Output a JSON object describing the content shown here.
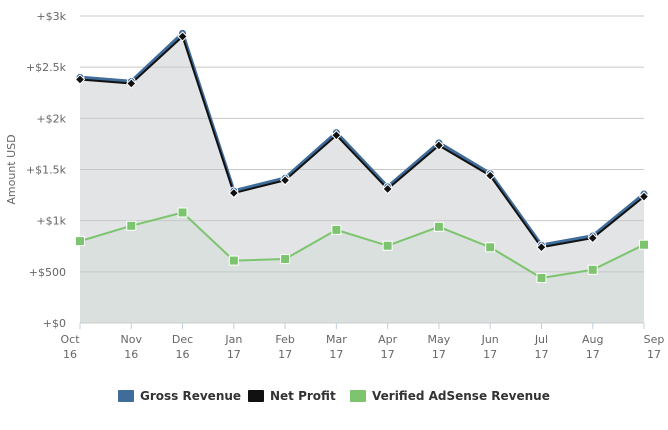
{
  "chart_data": {
    "type": "line",
    "categories": [
      "Oct 16",
      "Nov 16",
      "Dec 16",
      "Jan 17",
      "Feb 17",
      "Mar 17",
      "Apr 17",
      "May 17",
      "Jun 17",
      "Jul 17",
      "Aug 17",
      "Sep 17"
    ],
    "x_tick_lines": [
      [
        "Oct",
        "16"
      ],
      [
        "Nov",
        "16"
      ],
      [
        "Dec",
        "16"
      ],
      [
        "Jan",
        "17"
      ],
      [
        "Feb",
        "17"
      ],
      [
        "Mar",
        "17"
      ],
      [
        "Apr",
        "17"
      ],
      [
        "May",
        "17"
      ],
      [
        "Jun",
        "17"
      ],
      [
        "Jul",
        "17"
      ],
      [
        "Aug",
        "17"
      ],
      [
        "Sep",
        "17"
      ]
    ],
    "ylabel": "Amount USD",
    "ylim": [
      0,
      3000
    ],
    "y_ticks": [
      0,
      500,
      1000,
      1500,
      2000,
      2500,
      3000
    ],
    "y_tick_labels": [
      "+$0",
      "+$500",
      "+$1k",
      "+$1.5k",
      "+$2k",
      "+$2.5k",
      "+$3k"
    ],
    "grid": true,
    "legend_position": "bottom-center",
    "series": [
      {
        "name": "Gross Revenue",
        "color": "#3f6c9a",
        "marker": "circle",
        "values": [
          2400,
          2360,
          2830,
          1290,
          1415,
          1860,
          1330,
          1760,
          1460,
          760,
          850,
          1260
        ]
      },
      {
        "name": "Net Profit",
        "color": "#111111",
        "marker": "diamond",
        "values": [
          2380,
          2340,
          2800,
          1270,
          1395,
          1835,
          1310,
          1735,
          1440,
          740,
          830,
          1235
        ]
      },
      {
        "name": "Verified AdSense Revenue",
        "color": "#7cc46e",
        "marker": "square",
        "values": [
          800,
          950,
          1080,
          610,
          625,
          910,
          755,
          940,
          740,
          440,
          520,
          765
        ]
      }
    ]
  }
}
